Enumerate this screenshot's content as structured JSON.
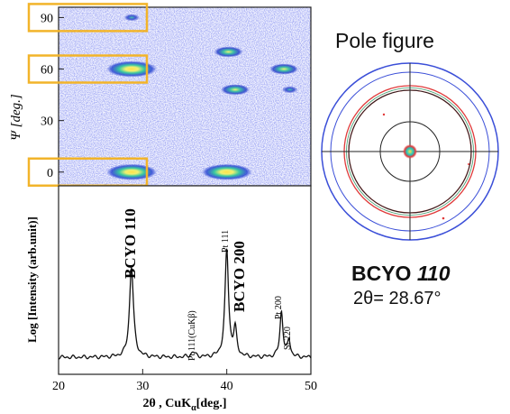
{
  "heatmap": {
    "ylabel": "Ψ [deg.]",
    "yticks": [
      "90",
      "60",
      "30",
      "0"
    ],
    "psi_range": [
      -8,
      96
    ],
    "highlight_color": "#f2b42a",
    "peak_color": "#ffe14a"
  },
  "chart_data": [
    {
      "type": "heatmap",
      "ylabel": "Ψ [deg.]",
      "xlim": [
        20,
        50
      ],
      "ylim": [
        -8,
        96
      ],
      "yticks": [
        0,
        30,
        60,
        90
      ],
      "spots": [
        {
          "two_theta": 28.7,
          "psi": 0,
          "intensity": "strong"
        },
        {
          "two_theta": 28.7,
          "psi": 60,
          "intensity": "strong"
        },
        {
          "two_theta": 28.7,
          "psi": 90,
          "intensity": "weak"
        },
        {
          "two_theta": 40.0,
          "psi": 0,
          "intensity": "strong"
        },
        {
          "two_theta": 40.2,
          "psi": 70,
          "intensity": "medium"
        },
        {
          "two_theta": 41.0,
          "psi": 48,
          "intensity": "medium"
        },
        {
          "two_theta": 46.8,
          "psi": 60,
          "intensity": "medium"
        },
        {
          "two_theta": 47.5,
          "psi": 48,
          "intensity": "weak"
        }
      ],
      "highlighted_psi": [
        90,
        60,
        0
      ]
    },
    {
      "type": "line",
      "xlabel": "2θ , CuKα [deg.]",
      "ylabel": "Log [Intensity (arb.unit)]",
      "xlim": [
        20,
        50
      ],
      "xticks": [
        20,
        30,
        40,
        50
      ],
      "peaks": [
        {
          "x": 28.67,
          "height": 0.54,
          "width": 0.28,
          "label": "BCYO 110"
        },
        {
          "x": 36.0,
          "height": 0.03,
          "width": 0.3,
          "label": "Pt 111(CuKβ)"
        },
        {
          "x": 40.0,
          "height": 0.64,
          "width": 0.25,
          "label": "Pt 111"
        },
        {
          "x": 41.0,
          "height": 0.16,
          "width": 0.22,
          "label": "BCYO 200"
        },
        {
          "x": 46.5,
          "height": 0.27,
          "width": 0.22,
          "label": "Pt 200"
        },
        {
          "x": 47.4,
          "height": 0.1,
          "width": 0.2,
          "label": "Si 220"
        }
      ]
    }
  ],
  "xrd": {
    "xlabel": "2θ , CuKα [deg.]",
    "xlabel_main": "2θ , CuK",
    "xlabel_sub": "α",
    "xlabel_tail": "[deg.]",
    "ylabel": "Log [Intensity (arb.unit)]",
    "xticks": [
      "20",
      "30",
      "40",
      "50"
    ],
    "labels": {
      "bcyo110": "BCYO 110",
      "pt111cukb": "Pt 111(CuKβ)",
      "pt111": "Pt 111",
      "bcyo200": "BCYO 200",
      "pt200": "Pt 200",
      "si220": "Si 220"
    }
  },
  "pole": {
    "title": "Pole figure",
    "caption_name": "BCYO",
    "caption_hkl": "110",
    "caption_2": "2θ= 28.67°",
    "outer_circle_color": "#3b4fd8",
    "ring_color": "#e03a3a"
  }
}
